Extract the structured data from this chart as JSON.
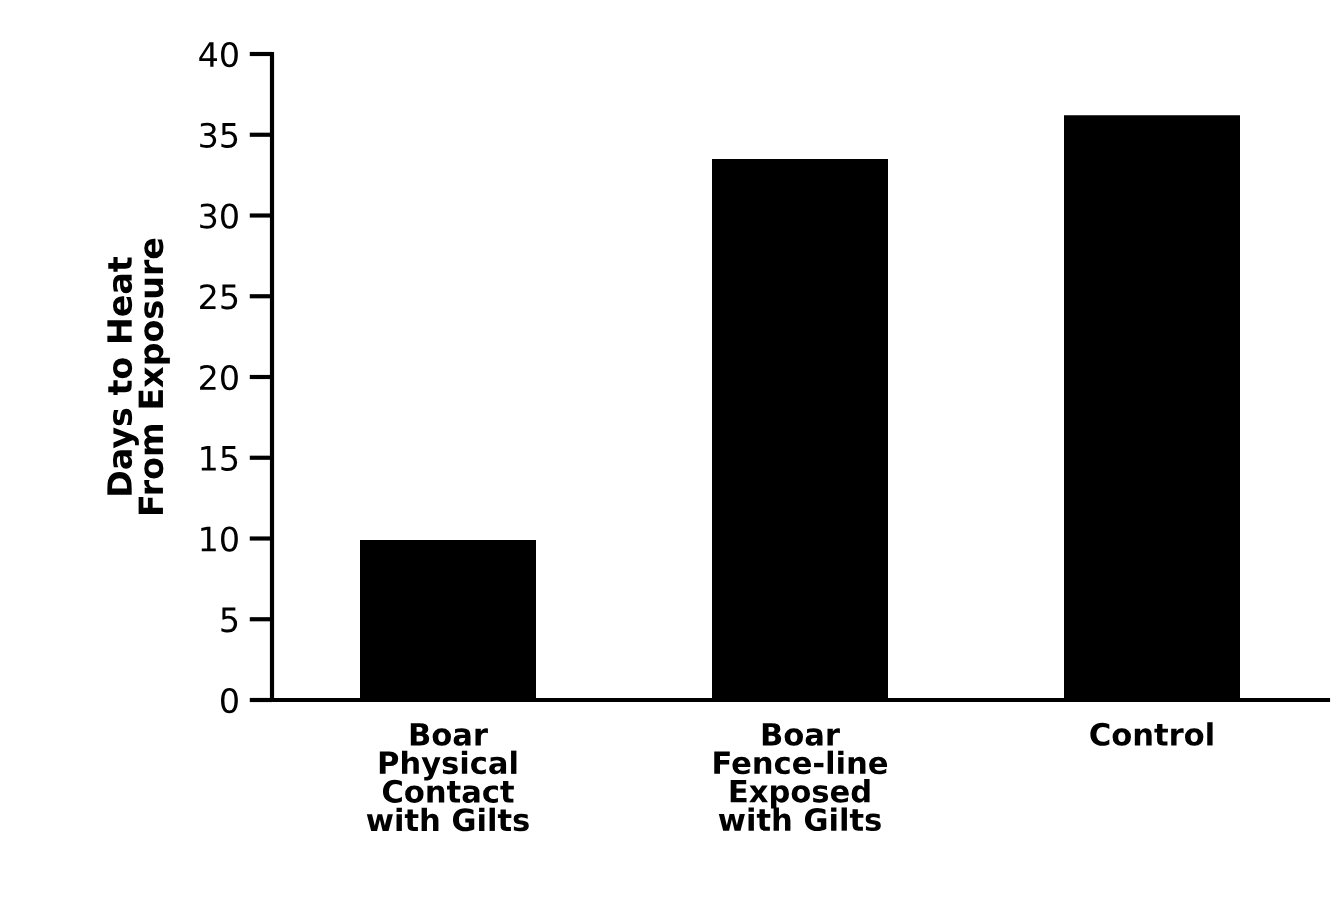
{
  "chart_data": {
    "type": "bar",
    "ylabel": "Days to Heat\nFrom Exposure",
    "categories": [
      "Boar\nPhysical\nContact\nwith Gilts",
      "Boar\nFence-line\nExposed\nwith Gilts",
      "Control"
    ],
    "values": [
      9.9,
      33.5,
      36.2
    ],
    "color": "#000000",
    "ylim": [
      0,
      40
    ],
    "yticks": [
      0,
      5,
      10,
      15,
      20,
      25,
      30,
      35,
      40
    ],
    "grid": false
  }
}
